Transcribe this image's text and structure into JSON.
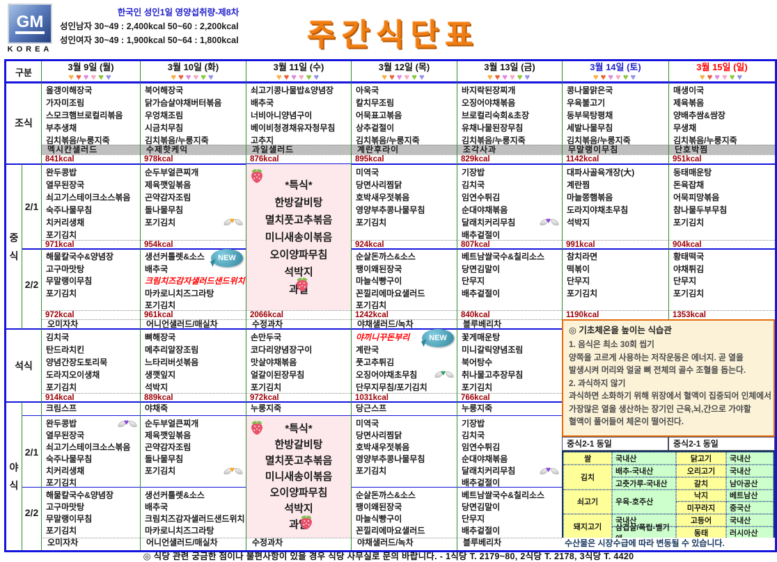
{
  "header": {
    "logo_gm": "GM",
    "logo_korea": "KOREA",
    "nutrition_title": "한국인 성인1일 영양섭취량-제8차",
    "nutrition_male": "성인남자 30~49 : 2,400kcal   50~60 : 2,200kcal",
    "nutrition_female": "성인여자 30~49 : 1,900kcal   50~64 : 1,800kcal",
    "title": "주간식단표"
  },
  "corner_label": "구분",
  "days": [
    {
      "label": "3월 9일 (월)",
      "color": "#111111"
    },
    {
      "label": "3월 10일 (화)",
      "color": "#111111"
    },
    {
      "label": "3월 11일 (수)",
      "color": "#111111"
    },
    {
      "label": "3월 12일 (목)",
      "color": "#111111"
    },
    {
      "label": "3월 13일 (금)",
      "color": "#111111"
    },
    {
      "label": "3월 14일 (토)",
      "color": "#1F1FD0"
    },
    {
      "label": "3월 15일 (일)",
      "color": "#FF0000"
    }
  ],
  "heart_colors": [
    "#F9B043",
    "#E8613C",
    "#DD8ADD",
    "#F7A8C4",
    "#8CC63F",
    "#9595E8"
  ],
  "heart_glyph": "♥",
  "row_labels": {
    "breakfast": "조식",
    "lunch": "중식",
    "dinner": "석식",
    "night": "야식",
    "sub1": "2/1",
    "sub2": "2/2"
  },
  "badge_new": "NEW",
  "accent_colors": {
    "heart_orange": "#F5A623",
    "heart_purple": "#8B45D9",
    "heart_green": "#2E9E6B"
  },
  "breakfast": [
    {
      "items": [
        "올갱이해장국",
        "가자미조림",
        "스모크햄브로컬리볶음",
        "부추생채",
        "김치볶음/누룽지죽"
      ],
      "dessert": "멕시칸샐러드",
      "kcal": "841kcal"
    },
    {
      "items": [
        "북어해장국",
        "닭가슴살야채버터볶음",
        "우엉채조림",
        "시금치무침",
        "김치볶음/누룽지죽"
      ],
      "dessert": "수제핫케익",
      "kcal": "978kcal"
    },
    {
      "items": [
        "쇠고기콩나물밥&양념장",
        "배추국",
        "너비아니양념구이",
        "베이비청경채유자청무침",
        "고추지"
      ],
      "dessert": "과일샐러드",
      "kcal": "876kcal"
    },
    {
      "items": [
        "아욱국",
        "칼치무조림",
        "어묵표고볶음",
        "상추겉절이",
        "김치볶음/누룽지죽"
      ],
      "dessert": "계란후라이",
      "kcal": "895kcal"
    },
    {
      "items": [
        "바지락된장찌개",
        "오징어야채볶음",
        "브로컬리숙회&초장",
        "유채나물된장무침",
        "김치볶음/누룽지죽"
      ],
      "dessert": "조각사과",
      "kcal": "829kcal"
    },
    {
      "items": [
        "콩나물맑은국",
        "우육불고기",
        "동부묵탕평채",
        "세발나물무침",
        "김치볶음/누룽지죽"
      ],
      "dessert": "무말랭이무침",
      "kcal": "1142kcal"
    },
    {
      "items": [
        "매생이국",
        "제육볶음",
        "양배추쌈&쌈장",
        "무생채",
        "김치볶음/누룽지죽"
      ],
      "dessert": "단호박찜",
      "kcal": "951kcal"
    }
  ],
  "lunch_sub1": [
    {
      "items": [
        "완두콩밥",
        "열무된장국",
        "쇠고기스테이크소스볶음",
        "숙주나물무침",
        "치커리생채",
        "포기김치"
      ],
      "kcal": "971kcal"
    },
    {
      "items": [
        "순두부얼큰찌개",
        "제육깻잎볶음",
        "곤약감자조림",
        "돌나물무침",
        {
          "t": "포기김치",
          "heart": "orange"
        }
      ],
      "kcal": "954kcal"
    },
    null,
    {
      "items": [
        "미역국",
        "당면사리찜닭",
        "호박새우젓볶음",
        "영양부추콩나물무침",
        "포기김치"
      ],
      "kcal": "924kcal"
    },
    {
      "items": [
        "기장밥",
        "김치국",
        "임연수튀김",
        "순대야채볶음",
        {
          "t": "달래치커리무침",
          "heart": "purple"
        },
        "배추겉절이"
      ],
      "kcal": "807kcal"
    },
    {
      "items": [
        "대파사골육개장(大)",
        "계란찜",
        "마늘쫑햄볶음",
        "도라지야채초무침",
        "석박지"
      ],
      "kcal": "991kcal"
    },
    {
      "items": [
        "동태매운탕",
        "돈육잡채",
        "어묵피망볶음",
        "참나물두부무침",
        "포기김치"
      ],
      "kcal": "904kcal"
    }
  ],
  "lunch_special": {
    "lines": [
      "*특식*",
      "한방갈비탕",
      "멸치풋고추볶음",
      "미니새송이볶음",
      "오이양파무침",
      "석박지",
      "과일"
    ],
    "kcal": "2066kcal"
  },
  "lunch_sub2": [
    {
      "items": [
        "해물칼국수&양념장",
        "고구마맛탕",
        "무말랭이무침",
        "포기김치"
      ],
      "kcal": "972kcal"
    },
    {
      "items": [
        "생선커틀렛&소스",
        "배추국",
        {
          "t": "크림치즈감자샐러드샌드위치",
          "red": true,
          "new": true
        },
        "마카로니치즈그라탕",
        "포기김치"
      ],
      "kcal": "961kcal"
    },
    null,
    {
      "items": [
        "순살돈까스&소스",
        "팽이왜된장국",
        "마늘식빵구이",
        "꼰낄리에마요샐러드",
        "포기김치"
      ],
      "kcal": "1242kcal"
    },
    {
      "items": [
        "베트남쌀국수&칠리소스",
        "당면김말이",
        "단무지",
        "배추겉절이"
      ],
      "kcal": "840kcal"
    },
    {
      "items": [
        "참치라면",
        "떡볶이",
        "단무지",
        "포기김치"
      ],
      "kcal": "1190kcal"
    },
    {
      "items": [
        "황태떡국",
        "야채튀김",
        "단무지",
        "포기김치"
      ],
      "kcal": "1353kcal"
    }
  ],
  "teas": [
    "오미자차",
    "어니언샐러드/매실차",
    "수정과차",
    "야채샐러드/녹차",
    "블루베리차"
  ],
  "dinner": [
    {
      "items": [
        "김치국",
        "탄드라치킨",
        "양념간장도토리묵",
        "도라지오이생채",
        "포기김치"
      ],
      "kcal": "914kcal"
    },
    {
      "items": [
        "뼈해장국",
        "메추리알장조림",
        "느타리버섯볶음",
        "생깻잎지",
        "석박지"
      ],
      "kcal": "889kcal"
    },
    {
      "items": [
        "손만두국",
        "코다리양념장구이",
        "맛살야채볶음",
        "얼갈이된장무침",
        "포기김치"
      ],
      "kcal": "972kcal"
    },
    {
      "items": [
        {
          "t": "야끼니꾸돈부리",
          "red": true,
          "new": true
        },
        "계란국",
        "풋고추튀김",
        {
          "t": "오징어야채초무침",
          "heart": "green"
        },
        "단무지무침/포기김치"
      ],
      "kcal": "1031kcal"
    },
    {
      "items": [
        "꽃게매운탕",
        "미니갈릭양념조림",
        "북어탕수",
        "취나물고추장무침",
        "포기김치"
      ],
      "kcal": "766kcal"
    },
    null,
    null
  ],
  "night_porridge": [
    "크림스프",
    "야채죽",
    "누룽지죽",
    "당근스프",
    "누룽지죽"
  ],
  "night_sub1": [
    {
      "items": [
        {
          "t": "완두콩밥",
          "heart": "purple"
        },
        "열무된장국",
        "쇠고기스테이크소스볶음",
        "숙주나물무침",
        "치커리생채",
        "포기김치"
      ]
    },
    {
      "items": [
        "순두부얼큰찌개",
        "제육깻잎볶음",
        "곤약감자조림",
        "돌나물무침",
        {
          "t": "포기김치",
          "heart": "orange"
        }
      ]
    },
    null,
    {
      "items": [
        "미역국",
        "당면사리찜닭",
        "호박새우젓볶음",
        "영양부추콩나물무침",
        "포기김치"
      ]
    },
    {
      "items": [
        "기장밥",
        "김치국",
        "임연수튀김",
        "순대야채볶음",
        {
          "t": "달래치커리무침",
          "heart": "purple"
        },
        "배추겉절이"
      ]
    },
    null,
    null
  ],
  "night_special": {
    "lines": [
      "*특식*",
      "한방갈비탕",
      "멸치풋고추볶음",
      "미니새송이볶음",
      "오이양파무침",
      "석박지",
      "과일"
    ]
  },
  "night_sub2": [
    {
      "items": [
        "해물칼국수&양념장",
        "고구마맛탕",
        "무말랭이무침",
        "포기김치"
      ]
    },
    {
      "items": [
        "생선커틀렛&소스",
        "배추국",
        "크림치즈감자샐러드샌드위치",
        "마카로니치즈그라탕"
      ]
    },
    null,
    {
      "items": [
        "순살돈까스&소스",
        "팽이왜된장국",
        "마늘식빵구이",
        "꼰낄리에마요샐러드"
      ]
    },
    {
      "items": [
        "베트남쌀국수&칠리소스",
        "당면김말이",
        "단무지",
        "배추겉절이"
      ]
    },
    null,
    null
  ],
  "tip_box": {
    "title": "◎ 기초체온을 높이는 식습관",
    "lines": [
      "1. 음식은 최소 30회 씹기",
      "양쪽을 고르게 사용하는 저작운동은 에너지. 곧 열을",
      "발생시켜 머리와 얼굴 뼈 전체의 골수 조혈을 돕는다.",
      "2. 과식하지 않기",
      "과식하면 소화하기 위해 위장에서 혈액이 집중되어 인체에서",
      "가장많은 열을 생산하는 장기인 근육,뇌,간으로 가야할",
      "혈액이 풀어들어 체온이 떨어진다."
    ]
  },
  "same_labels": [
    "중식2-1 동일",
    "중식2-1 동일"
  ],
  "origin_table": [
    [
      0,
      0,
      1,
      "y",
      "쌀"
    ],
    [
      1,
      0,
      1,
      "g",
      "국내산"
    ],
    [
      2,
      0,
      1,
      "y",
      "닭고기"
    ],
    [
      3,
      0,
      1,
      "g",
      "국내산"
    ],
    [
      0,
      1,
      2,
      "y",
      "김치"
    ],
    [
      1,
      1,
      1,
      "g",
      "배추-국내산"
    ],
    [
      2,
      1,
      1,
      "y",
      "오리고기"
    ],
    [
      3,
      1,
      1,
      "g",
      "국내산"
    ],
    [
      1,
      2,
      1,
      "g",
      "고춧가루-국내산"
    ],
    [
      2,
      2,
      1,
      "y",
      "갈치"
    ],
    [
      3,
      2,
      1,
      "g",
      "남아공산"
    ],
    [
      0,
      3,
      2,
      "y",
      "쇠고기"
    ],
    [
      1,
      3,
      2,
      "g",
      "우육-호주산"
    ],
    [
      2,
      3,
      1,
      "y",
      "낙지"
    ],
    [
      3,
      3,
      1,
      "g",
      "베트남산"
    ],
    [
      2,
      4,
      1,
      "y",
      "미꾸라지"
    ],
    [
      3,
      4,
      1,
      "g",
      "중국산"
    ],
    [
      0,
      5,
      2,
      "y",
      "돼지고기"
    ],
    [
      1,
      5,
      1,
      "g",
      "국내산"
    ],
    [
      2,
      5,
      1,
      "y",
      "고등어"
    ],
    [
      3,
      5,
      1,
      "g",
      "국내산"
    ],
    [
      1,
      6,
      1,
      "g",
      "삼겹살/폭립-벨기에"
    ],
    [
      2,
      6,
      1,
      "y",
      "동태"
    ],
    [
      3,
      6,
      1,
      "g",
      "러시아산"
    ]
  ],
  "origin_note": "수산물은 시장수급에 따라 변동될 수 있습니다.",
  "footer": "◎ 식당 관련 궁금한 점이나 불편사항이 있을 경우 식당 사무실로 문의 바랍니다.  -  1식당 T. 2179~80,   2식당 T. 2178,   3식당 T. 4420"
}
